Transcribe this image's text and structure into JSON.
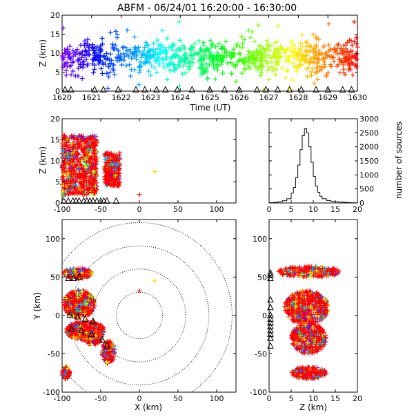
{
  "figure_title": "ABFM - 06/24/01 16:20:00 - 16:30:00",
  "chart_data": [
    {
      "panel": "time-height",
      "type": "scatter",
      "xlabel": "Time (UT)",
      "ylabel": "Z (km)",
      "xlim": [
        1620,
        1630
      ],
      "ylim": [
        0,
        20
      ],
      "xticks": [
        "1620",
        "1621",
        "1622",
        "1623",
        "1624",
        "1625",
        "1626",
        "1627",
        "1628",
        "1629",
        "1630"
      ],
      "yticks": [
        "0",
        "5",
        "10",
        "15",
        "20"
      ],
      "series": [
        {
          "x": [
            1620.2,
            1620.8,
            1621.5,
            1622.3,
            1623.1,
            1624.0,
            1625.0,
            1626.1,
            1627.0,
            1628.0,
            1628.9,
            1629.6
          ],
          "y": [
            8.5,
            9.0,
            8.8,
            9.2,
            8.7,
            9.1,
            8.9,
            9.3,
            8.6,
            9.0,
            9.4,
            8.8
          ]
        }
      ],
      "station_triangles_x": [
        1620.1,
        1620.3,
        1621.1,
        1621.4,
        1621.9,
        1622.5,
        1622.8,
        1623.2,
        1623.5,
        1623.9,
        1624.4,
        1625.0,
        1625.5,
        1626.0,
        1626.6,
        1626.9,
        1627.3,
        1627.7,
        1628.1,
        1628.6,
        1629.0,
        1629.5,
        1629.8
      ],
      "color_map": "rainbow (violet at 1620 to red at 1630)"
    },
    {
      "panel": "x-z",
      "type": "scatter",
      "xlabel": "",
      "ylabel": "Z (km)",
      "xlim": [
        -100,
        125
      ],
      "ylim": [
        0,
        20
      ],
      "xticks": [
        "-100",
        "-50",
        "0",
        "50",
        "100"
      ],
      "yticks": [
        "0",
        "5",
        "10",
        "15",
        "20"
      ],
      "clusters": [
        {
          "x_range": [
            -100,
            -55
          ],
          "z_range": [
            2,
            16
          ]
        },
        {
          "x_range": [
            -45,
            -25
          ],
          "z_range": [
            4,
            12
          ]
        }
      ],
      "outliers": [
        {
          "x": 20,
          "z": 7.5
        },
        {
          "x": 0,
          "z": 2
        }
      ],
      "station_triangles_x": [
        -98,
        -92,
        -86,
        -82,
        -78,
        -72,
        -68,
        -64,
        -60,
        -55,
        -50,
        -46,
        -42,
        -30
      ]
    },
    {
      "panel": "histogram",
      "type": "line",
      "xlabel": "",
      "ylabel": "number of sources",
      "xlim": [
        0,
        20
      ],
      "ylim": [
        0,
        3000
      ],
      "xticks": [
        "0",
        "5",
        "10",
        "15",
        "20"
      ],
      "yticks": [
        "0",
        "500",
        "1000",
        "1500",
        "2000",
        "2500",
        "3000"
      ],
      "x": [
        0,
        1,
        2,
        3,
        4,
        5,
        5.5,
        6,
        6.5,
        7,
        7.5,
        8,
        8.5,
        9,
        9.5,
        10,
        10.5,
        11,
        11.5,
        12,
        13,
        14,
        15,
        16,
        17,
        18,
        19,
        20
      ],
      "values": [
        10,
        20,
        40,
        80,
        150,
        350,
        550,
        900,
        1350,
        1900,
        2400,
        2650,
        2500,
        2000,
        1450,
        950,
        600,
        380,
        240,
        150,
        90,
        60,
        40,
        30,
        20,
        10,
        5,
        0
      ]
    },
    {
      "panel": "x-y",
      "type": "scatter",
      "xlabel": "X (km)",
      "ylabel": "Y (km)",
      "xlim": [
        -100,
        125
      ],
      "ylim": [
        -100,
        125
      ],
      "xticks": [
        "-100",
        "-50",
        "0",
        "50",
        "100"
      ],
      "yticks": [
        "-100",
        "-50",
        "0",
        "50",
        "100"
      ],
      "range_rings_km": [
        30,
        60,
        90,
        120
      ],
      "clusters": [
        {
          "cx": -80,
          "cy": 55,
          "rx": 18,
          "ry": 7
        },
        {
          "cx": -78,
          "cy": 15,
          "rx": 20,
          "ry": 18
        },
        {
          "cx": -70,
          "cy": -20,
          "rx": 25,
          "ry": 12
        },
        {
          "cx": -60,
          "cy": -28,
          "rx": 12,
          "ry": 10
        },
        {
          "cx": -40,
          "cy": -48,
          "rx": 8,
          "ry": 15
        },
        {
          "cx": -95,
          "cy": -75,
          "rx": 5,
          "ry": 8
        }
      ],
      "outliers": [
        {
          "x": 20,
          "y": 45
        },
        {
          "x": 0,
          "y": 32
        }
      ]
    },
    {
      "panel": "z-y",
      "type": "scatter",
      "xlabel": "Z (km)",
      "ylabel": "",
      "xlim": [
        0,
        20
      ],
      "ylim": [
        -100,
        125
      ],
      "xticks": [
        "0",
        "5",
        "10",
        "15",
        "20"
      ],
      "yticks": [
        "-100",
        "-50",
        "0",
        "50",
        "100"
      ],
      "clusters": [
        {
          "cz": 9,
          "cy": 57,
          "rz": 7,
          "ry": 7
        },
        {
          "cz": 8.5,
          "cy": 10,
          "rz": 5,
          "ry": 22
        },
        {
          "cz": 9,
          "cy": -30,
          "rz": 4,
          "ry": 20
        },
        {
          "cz": 9,
          "cy": -75,
          "rz": 4,
          "ry": 8
        }
      ],
      "station_triangles_y": [
        55,
        52,
        48,
        20,
        10,
        0,
        -5,
        -10,
        -15,
        -20,
        -25,
        -30,
        -40
      ]
    }
  ]
}
